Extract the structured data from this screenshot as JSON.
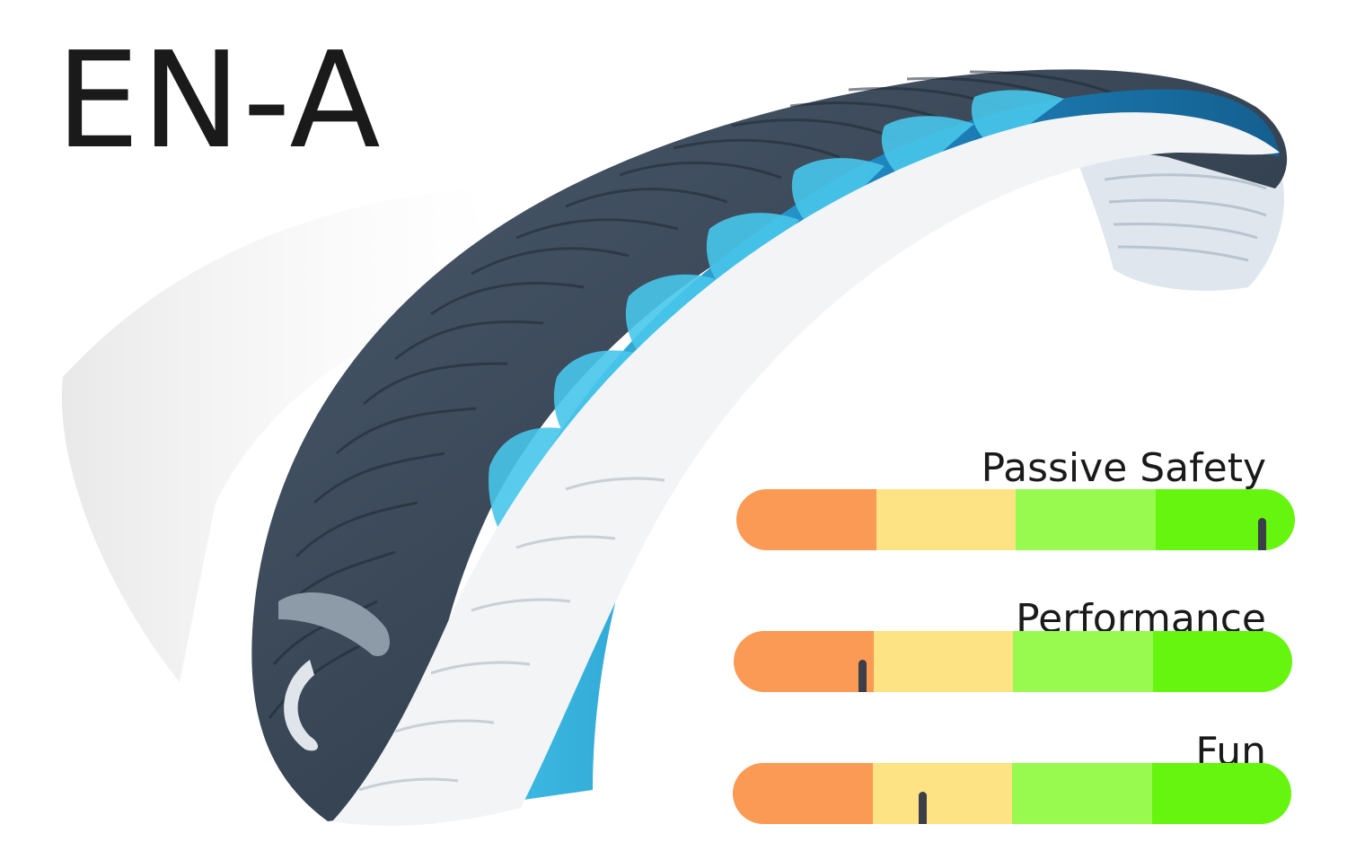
{
  "title": "EN-A",
  "colors": {
    "segments": [
      "#fb9a55",
      "#fde384",
      "#98f94f",
      "#66f50f"
    ],
    "marker": "#3a3f48",
    "wing_dark": "#3a4a5c",
    "wing_blue": "#1f7fb0",
    "wing_cyan": "#4bc4e6",
    "wing_white": "#f2f4f6"
  },
  "gauges": [
    {
      "label": "Passive Safety",
      "level": 0.94
    },
    {
      "label": "Performance",
      "level": 0.23
    },
    {
      "label": "Fun",
      "level": 0.34
    }
  ]
}
